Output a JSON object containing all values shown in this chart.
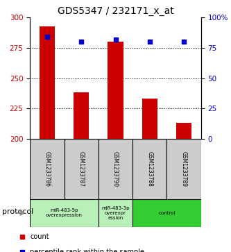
{
  "title": "GDS5347 / 232171_x_at",
  "samples": [
    "GSM1233786",
    "GSM1233787",
    "GSM1233790",
    "GSM1233788",
    "GSM1233789"
  ],
  "counts": [
    293,
    238,
    280,
    233,
    213
  ],
  "percentiles": [
    84,
    80,
    82,
    80,
    80
  ],
  "ylim_left": [
    200,
    300
  ],
  "ylim_right": [
    0,
    100
  ],
  "yticks_left": [
    200,
    225,
    250,
    275,
    300
  ],
  "yticks_right": [
    0,
    25,
    50,
    75,
    100
  ],
  "bar_color": "#cc0000",
  "marker_color": "#0000cc",
  "bar_width": 0.45,
  "groups_info": [
    {
      "samples": [
        0,
        1
      ],
      "label": "miR-483-5p\noverexpression",
      "color": "#b8f0b8"
    },
    {
      "samples": [
        2
      ],
      "label": "miR-483-3p\noverexpr\nession",
      "color": "#b8f0b8"
    },
    {
      "samples": [
        3,
        4
      ],
      "label": "control",
      "color": "#33cc33"
    }
  ],
  "protocol_label": "protocol",
  "legend_count_label": "count",
  "legend_percentile_label": "percentile rank within the sample",
  "grid_color": "black",
  "sample_box_color": "#cccccc",
  "background_color": "#ffffff",
  "title_fontsize": 10,
  "tick_fontsize": 7.5
}
